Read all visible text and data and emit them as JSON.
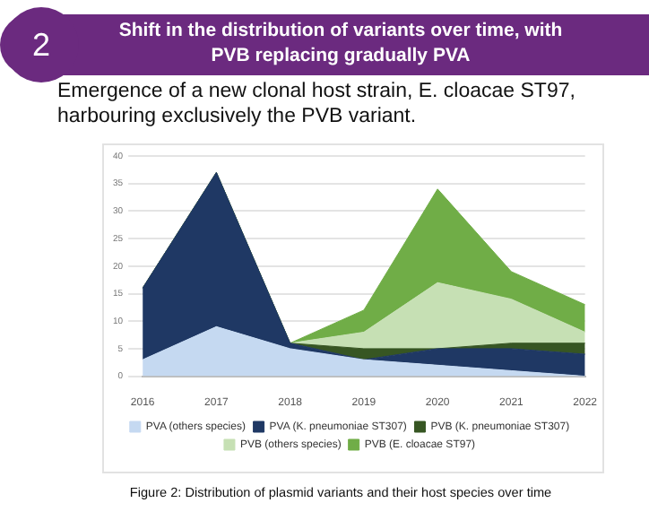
{
  "chart_data": {
    "type": "area",
    "title": "Shift in the distribution of variants over time, with PVB replacing gradually PVA",
    "subtitle": "Emergence of a new clonal host strain, E. cloacae ST97, harbouring exclusively the PVB variant.",
    "annotations": [
      "2",
      "Figure 2: Distribution of plasmid variants and their host species over time"
    ],
    "categories": [
      "2016",
      "2017",
      "2018",
      "2019",
      "2020",
      "2021",
      "2022"
    ],
    "stacked": true,
    "ylim": [
      0,
      40
    ],
    "yticks": [
      0,
      5,
      10,
      15,
      20,
      25,
      30,
      35,
      40
    ],
    "grid": "y",
    "legend": "bottom",
    "series": [
      {
        "name": "PVA (others species)",
        "color": "#c5d9f1",
        "values": [
          3,
          9,
          5,
          3,
          2,
          1,
          0
        ]
      },
      {
        "name": "PVA (K. pneumoniae ST307)",
        "color": "#1f3864",
        "values": [
          13,
          28,
          1,
          0,
          3,
          4,
          4
        ]
      },
      {
        "name": "PVB (K. pneumoniae ST307)",
        "color": "#375623",
        "values": [
          0,
          0,
          0,
          2,
          0,
          1,
          2
        ]
      },
      {
        "name": "PVB (others species)",
        "color": "#c6e0b4",
        "values": [
          0,
          0,
          0,
          3,
          12,
          8,
          2
        ]
      },
      {
        "name": "PVB (E. cloacae ST97)",
        "color": "#70ad47",
        "values": [
          0,
          0,
          0,
          4,
          17,
          5,
          5
        ]
      }
    ]
  }
}
